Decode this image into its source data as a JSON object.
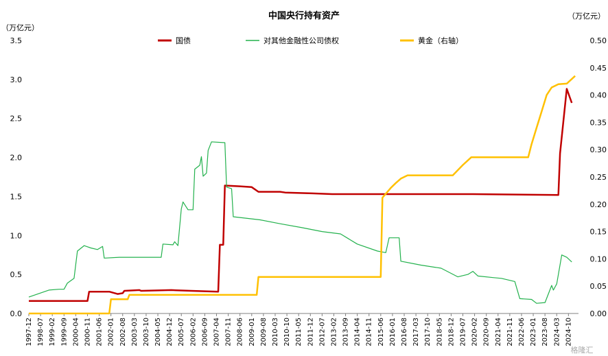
{
  "chart_data": {
    "type": "line",
    "title": "中国央行持有资产",
    "left_unit": "（万亿元）",
    "right_unit": "（万亿元）",
    "ylim_left": [
      0,
      3.5
    ],
    "ylim_right": [
      0,
      0.5
    ],
    "yticks_left": [
      "0.0",
      "0.5",
      "1.0",
      "1.5",
      "2.0",
      "2.5",
      "3.0",
      "3.5"
    ],
    "yticks_right": [
      "0.00",
      "0.05",
      "0.10",
      "0.15",
      "0.20",
      "0.25",
      "0.30",
      "0.35",
      "0.40",
      "0.45",
      "0.50"
    ],
    "x_range": [
      "1997-12",
      "2025-04"
    ],
    "x_ticks": [
      "1997-12",
      "1998-07",
      "1999-02",
      "1999-09",
      "2000-04",
      "2000-11",
      "2001-06",
      "2002-01",
      "2002-08",
      "2003-03",
      "2003-10",
      "2004-05",
      "2004-12",
      "2005-07",
      "2006-02",
      "2006-09",
      "2007-04",
      "2007-11",
      "2008-06",
      "2009-01",
      "2009-08",
      "2010-03",
      "2010-10",
      "2011-05",
      "2011-12",
      "2012-07",
      "2013-02",
      "2013-09",
      "2014-04",
      "2014-11",
      "2015-06",
      "2016-01",
      "2016-08",
      "2017-03",
      "2017-10",
      "2018-05",
      "2018-12",
      "2019-07",
      "2020-02",
      "2020-09",
      "2021-04",
      "2021-11",
      "2022-06",
      "2023-01",
      "2023-08",
      "2024-03",
      "2024-10"
    ],
    "legend_position": "top",
    "grid": false,
    "series": [
      {
        "name": "国债",
        "color": "#c00000",
        "axis": "left",
        "points": [
          [
            "1997-12",
            0.16
          ],
          [
            "2000-11",
            0.16
          ],
          [
            "2000-12",
            0.28
          ],
          [
            "2001-12",
            0.28
          ],
          [
            "2002-05",
            0.25
          ],
          [
            "2002-08",
            0.26
          ],
          [
            "2002-09",
            0.29
          ],
          [
            "2003-06",
            0.3
          ],
          [
            "2003-07",
            0.29
          ],
          [
            "2005-01",
            0.3
          ],
          [
            "2006-01",
            0.29
          ],
          [
            "2007-05",
            0.28
          ],
          [
            "2007-06",
            0.88
          ],
          [
            "2007-08",
            0.88
          ],
          [
            "2007-09",
            1.64
          ],
          [
            "2008-06",
            1.63
          ],
          [
            "2009-01",
            1.62
          ],
          [
            "2009-05",
            1.56
          ],
          [
            "2010-06",
            1.56
          ],
          [
            "2010-09",
            1.55
          ],
          [
            "2012-01",
            1.54
          ],
          [
            "2013-01",
            1.53
          ],
          [
            "2015-01",
            1.53
          ],
          [
            "2016-01",
            1.53
          ],
          [
            "2020-01",
            1.53
          ],
          [
            "2024-04",
            1.52
          ],
          [
            "2024-05",
            2.05
          ],
          [
            "2024-09",
            2.88
          ],
          [
            "2024-12",
            2.7
          ]
        ]
      },
      {
        "name": "对其他金融性公司债权",
        "color": "#22b14c",
        "axis": "left",
        "points": [
          [
            "1997-12",
            0.21
          ],
          [
            "1998-12",
            0.3
          ],
          [
            "1999-06",
            0.31
          ],
          [
            "1999-09",
            0.31
          ],
          [
            "1999-11",
            0.39
          ],
          [
            "2000-03",
            0.45
          ],
          [
            "2000-05",
            0.8
          ],
          [
            "2000-09",
            0.87
          ],
          [
            "2001-01",
            0.84
          ],
          [
            "2001-05",
            0.82
          ],
          [
            "2001-08",
            0.86
          ],
          [
            "2001-09",
            0.71
          ],
          [
            "2002-06",
            0.72
          ],
          [
            "2004-07",
            0.72
          ],
          [
            "2004-08",
            0.89
          ],
          [
            "2005-02",
            0.88
          ],
          [
            "2005-03",
            0.92
          ],
          [
            "2005-05",
            0.87
          ],
          [
            "2005-07",
            1.34
          ],
          [
            "2005-08",
            1.43
          ],
          [
            "2005-11",
            1.33
          ],
          [
            "2006-02",
            1.33
          ],
          [
            "2006-03",
            1.85
          ],
          [
            "2006-06",
            1.9
          ],
          [
            "2006-07",
            2.01
          ],
          [
            "2006-08",
            1.76
          ],
          [
            "2006-10",
            1.8
          ],
          [
            "2006-11",
            2.09
          ],
          [
            "2007-01",
            2.2
          ],
          [
            "2007-09",
            2.19
          ],
          [
            "2007-10",
            1.62
          ],
          [
            "2008-01",
            1.6
          ],
          [
            "2008-02",
            1.24
          ],
          [
            "2009-06",
            1.2
          ],
          [
            "2010-06",
            1.15
          ],
          [
            "2011-07",
            1.1
          ],
          [
            "2012-07",
            1.05
          ],
          [
            "2013-06",
            1.02
          ],
          [
            "2014-04",
            0.89
          ],
          [
            "2015-04",
            0.8
          ],
          [
            "2015-09",
            0.78
          ],
          [
            "2015-11",
            0.97
          ],
          [
            "2016-05",
            0.97
          ],
          [
            "2016-06",
            0.67
          ],
          [
            "2017-06",
            0.62
          ],
          [
            "2018-06",
            0.58
          ],
          [
            "2019-04",
            0.47
          ],
          [
            "2019-10",
            0.5
          ],
          [
            "2020-01",
            0.54
          ],
          [
            "2020-04",
            0.48
          ],
          [
            "2021-01",
            0.46
          ],
          [
            "2021-06",
            0.45
          ],
          [
            "2022-02",
            0.41
          ],
          [
            "2022-05",
            0.19
          ],
          [
            "2022-12",
            0.18
          ],
          [
            "2023-03",
            0.13
          ],
          [
            "2023-08",
            0.14
          ],
          [
            "2023-12",
            0.36
          ],
          [
            "2024-01",
            0.3
          ],
          [
            "2024-03",
            0.38
          ],
          [
            "2024-06",
            0.75
          ],
          [
            "2024-09",
            0.72
          ],
          [
            "2024-12",
            0.66
          ]
        ]
      },
      {
        "name": "黄金（右轴）",
        "color": "#ffc000",
        "axis": "right",
        "points": [
          [
            "1997-12",
            0.0
          ],
          [
            "2001-12",
            0.0
          ],
          [
            "2002-01",
            0.026
          ],
          [
            "2002-11",
            0.026
          ],
          [
            "2002-12",
            0.034
          ],
          [
            "2009-04",
            0.034
          ],
          [
            "2009-05",
            0.067
          ],
          [
            "2015-06",
            0.067
          ],
          [
            "2015-07",
            0.212
          ],
          [
            "2015-12",
            0.23
          ],
          [
            "2016-03",
            0.239
          ],
          [
            "2016-06",
            0.247
          ],
          [
            "2016-10",
            0.253
          ],
          [
            "2017-06",
            0.253
          ],
          [
            "2019-01",
            0.253
          ],
          [
            "2019-07",
            0.272
          ],
          [
            "2019-12",
            0.286
          ],
          [
            "2022-10",
            0.286
          ],
          [
            "2022-12",
            0.31
          ],
          [
            "2023-03",
            0.34
          ],
          [
            "2023-06",
            0.37
          ],
          [
            "2023-09",
            0.4
          ],
          [
            "2023-12",
            0.414
          ],
          [
            "2024-04",
            0.42
          ],
          [
            "2024-09",
            0.421
          ],
          [
            "2025-02",
            0.435
          ]
        ]
      }
    ]
  },
  "watermark": "格隆汇"
}
